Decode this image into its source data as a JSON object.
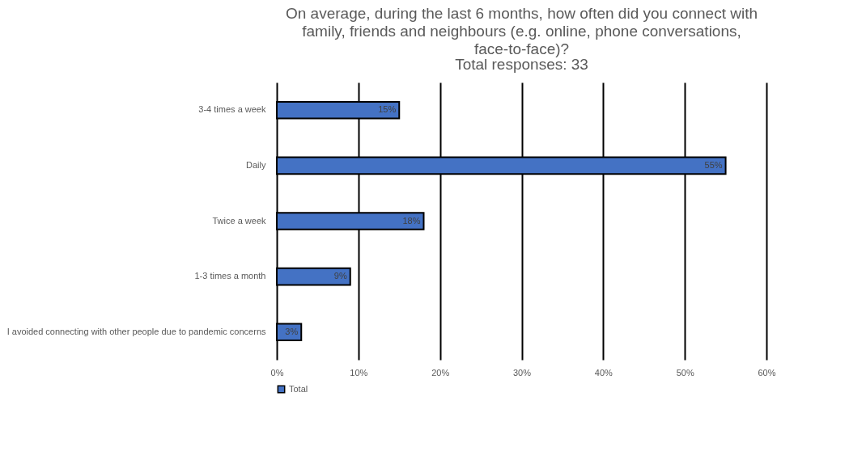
{
  "chart_data": {
    "type": "bar",
    "orientation": "horizontal",
    "title": "On average, during the last 6 months, how often did you connect with family, friends and neighbours (e.g. online, phone conversations, face-to-face)?",
    "subtitle": "Total responses: 33",
    "categories": [
      "3-4 times a week",
      "Daily",
      "Twice a week",
      "1-3 times a month",
      "I avoided connecting with other people due to pandemic concerns"
    ],
    "series": [
      {
        "name": "Total",
        "color": "#4472c4",
        "values": [
          15,
          55,
          18,
          9,
          3
        ],
        "value_labels": [
          "15%",
          "55%",
          "18%",
          "9%",
          "3%"
        ]
      }
    ],
    "xlim": [
      0,
      60
    ],
    "xticks": [
      {
        "value": 0,
        "label": "0%"
      },
      {
        "value": 10,
        "label": "10%"
      },
      {
        "value": 20,
        "label": "20%"
      },
      {
        "value": 30,
        "label": "30%"
      },
      {
        "value": 40,
        "label": "40%"
      },
      {
        "value": 50,
        "label": "50%"
      },
      {
        "value": 60,
        "label": "60%"
      }
    ],
    "grid": "x",
    "legend": "bottom"
  }
}
